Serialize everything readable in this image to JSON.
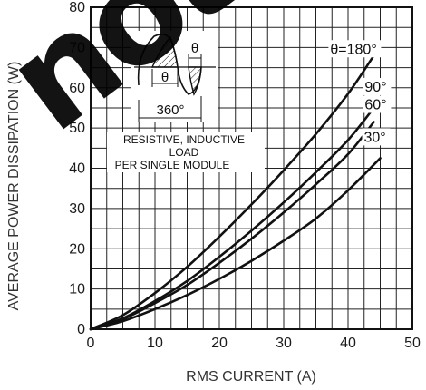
{
  "chart_data": {
    "type": "line",
    "title": "",
    "xlabel": "RMS CURRENT (A)",
    "ylabel": "AVERAGE POWER DISSIPATION (W)",
    "xlim": [
      0,
      50
    ],
    "ylim": [
      0,
      80
    ],
    "xticks": [
      "0",
      "10",
      "20",
      "30",
      "40",
      "50"
    ],
    "yticks": [
      "0",
      "10",
      "20",
      "30",
      "40",
      "50",
      "60",
      "70",
      "80"
    ],
    "grid": true,
    "series": [
      {
        "name": "θ=180°",
        "x": [
          0,
          5,
          10,
          15,
          20,
          25,
          30,
          35,
          40,
          44
        ],
        "y": [
          0,
          3.5,
          9,
          15.5,
          23,
          31,
          39.5,
          48.5,
          58.5,
          68
        ]
      },
      {
        "name": "90°",
        "x": [
          0,
          5,
          10,
          15,
          20,
          25,
          30,
          35,
          40,
          44
        ],
        "y": [
          0,
          2.7,
          7,
          12,
          18,
          24.5,
          31.5,
          39,
          47,
          55
        ]
      },
      {
        "name": "60°",
        "x": [
          0,
          5,
          10,
          15,
          20,
          25,
          30,
          35,
          40,
          44
        ],
        "y": [
          0,
          2.5,
          6.5,
          11,
          16.5,
          22.5,
          29,
          36,
          43.5,
          51.5
        ]
      },
      {
        "name": "30°",
        "x": [
          0,
          5,
          10,
          15,
          20,
          25,
          30,
          35,
          40,
          45
        ],
        "y": [
          0,
          2,
          5,
          8.5,
          12.5,
          17,
          22,
          27.5,
          34.5,
          42.5
        ]
      }
    ],
    "annotations": {
      "inset_theta": "θ",
      "inset_360": "360°",
      "load_line1": "RESISTIVE, INDUCTIVE",
      "load_line2": "LOAD",
      "load_line3": "PER SINGLE MODULE"
    }
  }
}
